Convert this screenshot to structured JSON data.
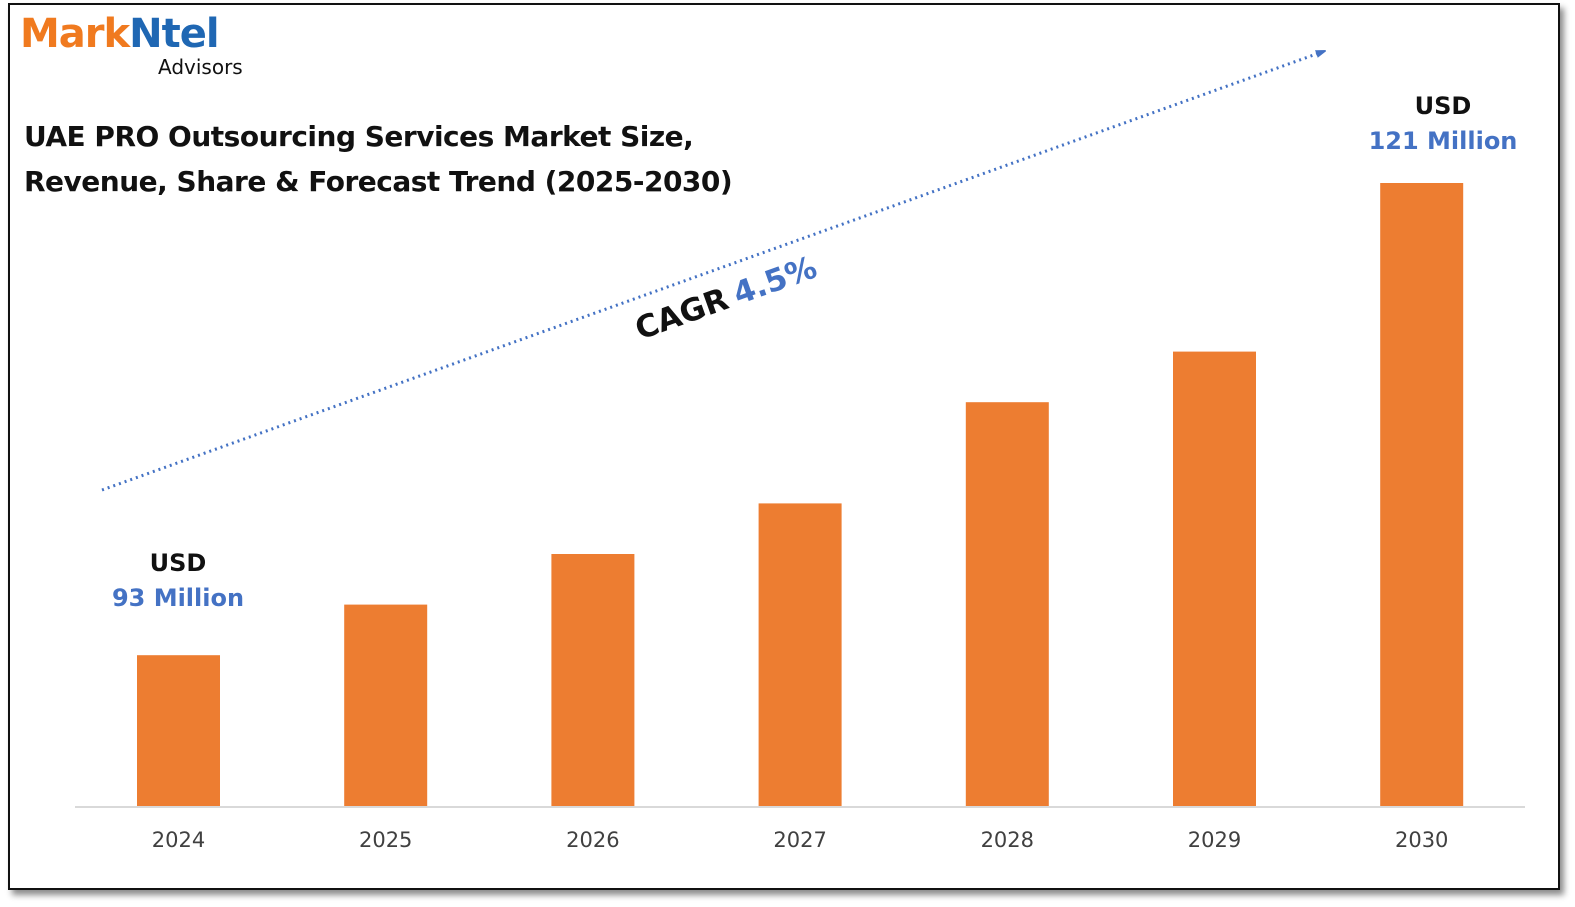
{
  "logo": {
    "brand_part1": "Mark",
    "brand_part2": "Ntel",
    "tagline": "Advisors"
  },
  "title": {
    "line1": "UAE PRO Outsourcing Services Market Size,",
    "line2": "Revenue, Share & Forecast Trend (2025-2030)"
  },
  "cagr": {
    "label": "CAGR",
    "value": "4.5%"
  },
  "annotations": {
    "start": {
      "line1": "USD",
      "line2": "93 Million"
    },
    "end": {
      "line1": "USD",
      "line2": "121 Million"
    }
  },
  "colors": {
    "bar": "#ed7d31",
    "accent_blue": "#4472c4",
    "logo_orange": "#f07a1f",
    "logo_blue": "#1f67b3",
    "text": "#111111",
    "axis": "#d9d9d9"
  },
  "chart_data": {
    "type": "bar",
    "title": "UAE PRO Outsourcing Services Market Size, Revenue, Share & Forecast Trend (2025-2030)",
    "categories": [
      "2024",
      "2025",
      "2026",
      "2027",
      "2028",
      "2029",
      "2030"
    ],
    "values": [
      93,
      96,
      99,
      102,
      108,
      111,
      121
    ],
    "unit": "USD Million",
    "ylim": [
      84,
      121
    ],
    "grid": false,
    "legend": "none",
    "data_labels": {
      "2024": "USD 93 Million",
      "2030": "USD 121 Million"
    },
    "trend_annotation": "CAGR 4.5%"
  }
}
